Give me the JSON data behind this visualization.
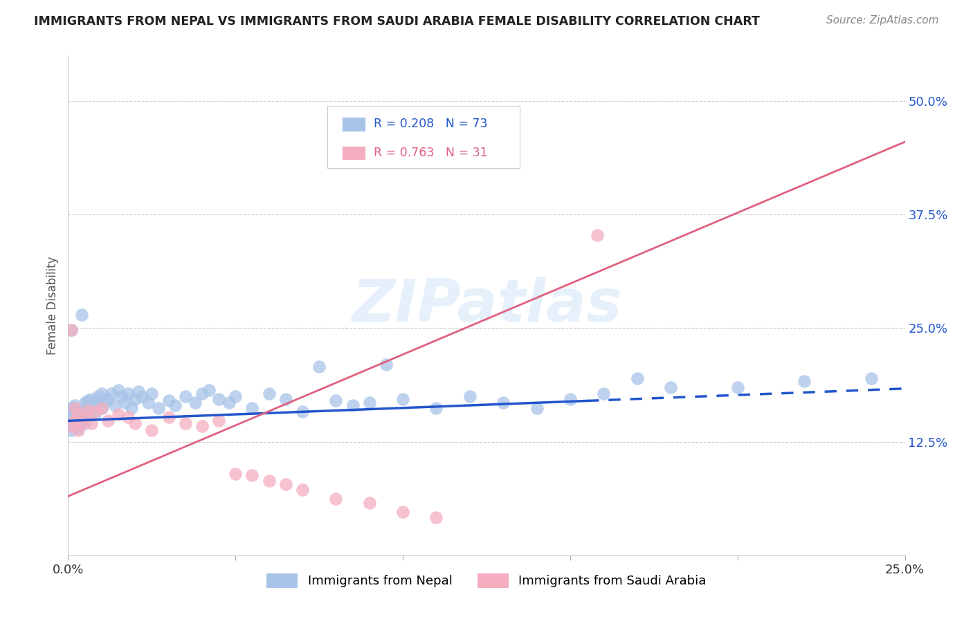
{
  "title": "IMMIGRANTS FROM NEPAL VS IMMIGRANTS FROM SAUDI ARABIA FEMALE DISABILITY CORRELATION CHART",
  "source": "Source: ZipAtlas.com",
  "ylabel": "Female Disability",
  "nepal_R": 0.208,
  "nepal_N": 73,
  "saudi_R": 0.763,
  "saudi_N": 31,
  "nepal_color": "#a8c4e8",
  "saudi_color": "#f5aec0",
  "nepal_line_color": "#2255cc",
  "saudi_line_color": "#e06080",
  "nepal_line_x0": 0.0,
  "nepal_line_y0": 0.148,
  "nepal_line_x1": 0.155,
  "nepal_line_y1": 0.17,
  "nepal_line_dashed_x0": 0.155,
  "nepal_line_dashed_x1": 0.25,
  "nepal_line_dashed_y1": 0.195,
  "saudi_line_x0": 0.0,
  "saudi_line_y0": 0.065,
  "saudi_line_x1": 0.25,
  "saudi_line_y1": 0.455,
  "nepal_scatter_x": [
    0.001,
    0.001,
    0.001,
    0.001,
    0.001,
    0.002,
    0.002,
    0.002,
    0.002,
    0.003,
    0.003,
    0.003,
    0.003,
    0.004,
    0.004,
    0.004,
    0.005,
    0.005,
    0.005,
    0.006,
    0.006,
    0.007,
    0.007,
    0.008,
    0.008,
    0.009,
    0.01,
    0.01,
    0.011,
    0.012,
    0.013,
    0.014,
    0.015,
    0.016,
    0.017,
    0.018,
    0.019,
    0.02,
    0.021,
    0.022,
    0.024,
    0.025,
    0.027,
    0.03,
    0.032,
    0.035,
    0.038,
    0.04,
    0.042,
    0.045,
    0.048,
    0.05,
    0.055,
    0.06,
    0.065,
    0.07,
    0.075,
    0.08,
    0.085,
    0.09,
    0.095,
    0.1,
    0.11,
    0.12,
    0.13,
    0.14,
    0.15,
    0.16,
    0.17,
    0.18,
    0.2,
    0.22,
    0.24
  ],
  "nepal_scatter_y": [
    0.148,
    0.155,
    0.162,
    0.138,
    0.145,
    0.152,
    0.158,
    0.142,
    0.165,
    0.14,
    0.16,
    0.155,
    0.148,
    0.162,
    0.158,
    0.152,
    0.168,
    0.145,
    0.162,
    0.17,
    0.158,
    0.165,
    0.172,
    0.168,
    0.155,
    0.175,
    0.178,
    0.162,
    0.168,
    0.172,
    0.178,
    0.165,
    0.182,
    0.175,
    0.168,
    0.178,
    0.162,
    0.172,
    0.18,
    0.175,
    0.168,
    0.178,
    0.162,
    0.17,
    0.165,
    0.175,
    0.168,
    0.178,
    0.182,
    0.172,
    0.168,
    0.175,
    0.162,
    0.178,
    0.172,
    0.158,
    0.165,
    0.17,
    0.165,
    0.168,
    0.165,
    0.172,
    0.162,
    0.175,
    0.168,
    0.162,
    0.172,
    0.178,
    0.195,
    0.185,
    0.185,
    0.192,
    0.195
  ],
  "nepal_scatter_y_overrides": {
    "4": 0.248,
    "13": 0.265,
    "56": 0.208,
    "60": 0.21
  },
  "saudi_scatter_x": [
    0.001,
    0.001,
    0.002,
    0.002,
    0.003,
    0.003,
    0.004,
    0.005,
    0.006,
    0.007,
    0.008,
    0.01,
    0.012,
    0.015,
    0.018,
    0.02,
    0.025,
    0.03,
    0.035,
    0.04,
    0.045,
    0.05,
    0.055,
    0.06,
    0.065,
    0.07,
    0.08,
    0.09,
    0.1,
    0.11,
    0.158
  ],
  "saudi_scatter_y": [
    0.142,
    0.155,
    0.148,
    0.162,
    0.138,
    0.155,
    0.145,
    0.152,
    0.16,
    0.145,
    0.158,
    0.162,
    0.148,
    0.155,
    0.152,
    0.145,
    0.138,
    0.152,
    0.145,
    0.142,
    0.148,
    0.09,
    0.088,
    0.082,
    0.078,
    0.072,
    0.062,
    0.058,
    0.048,
    0.042,
    0.352
  ],
  "saudi_scatter_y_overrides": {
    "1": 0.248
  },
  "watermark_text": "ZIPatlas",
  "legend_nepal_label": "Immigrants from Nepal",
  "legend_saudi_label": "Immigrants from Saudi Arabia",
  "background_color": "#ffffff",
  "grid_color": "#cccccc",
  "xlim": [
    0.0,
    0.25
  ],
  "ylim": [
    0.0,
    0.55
  ],
  "yticks": [
    0.125,
    0.25,
    0.375,
    0.5
  ],
  "ytick_labels": [
    "12.5%",
    "25.0%",
    "37.5%",
    "50.0%"
  ],
  "xticks": [
    0.0,
    0.05,
    0.1,
    0.15,
    0.2,
    0.25
  ],
  "xtick_labels": [
    "0.0%",
    "",
    "",
    "",
    "",
    "25.0%"
  ]
}
